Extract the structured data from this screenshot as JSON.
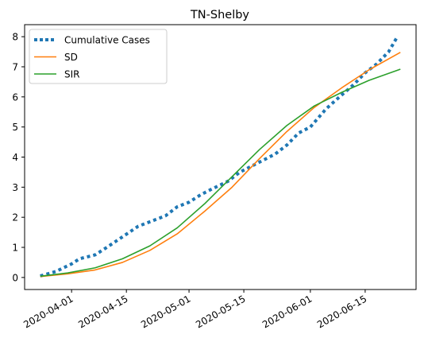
{
  "chart_data": {
    "type": "line",
    "title": "TN-Shelby",
    "xlabel": "",
    "ylabel": "",
    "x_type": "date",
    "xlim": [
      "2020-03-20",
      "2020-06-28"
    ],
    "ylim": [
      -0.4,
      8.4
    ],
    "yticks": [
      0,
      1,
      2,
      3,
      4,
      5,
      6,
      7,
      8
    ],
    "xticks": [
      "2020-04-01",
      "2020-04-15",
      "2020-05-01",
      "2020-05-15",
      "2020-06-01",
      "2020-06-15"
    ],
    "legend_position": "top-left",
    "grid": false,
    "series": [
      {
        "name": "Cumulative Cases",
        "color": "#1f77b4",
        "style": "dotted",
        "points": [
          [
            "2020-03-24",
            0.05
          ],
          [
            "2020-03-28",
            0.2
          ],
          [
            "2020-04-01",
            0.45
          ],
          [
            "2020-04-03",
            0.62
          ],
          [
            "2020-04-07",
            0.75
          ],
          [
            "2020-04-10",
            1.0
          ],
          [
            "2020-04-14",
            1.35
          ],
          [
            "2020-04-18",
            1.7
          ],
          [
            "2020-04-22",
            1.9
          ],
          [
            "2020-04-25",
            2.05
          ],
          [
            "2020-04-28",
            2.35
          ],
          [
            "2020-05-01",
            2.5
          ],
          [
            "2020-05-04",
            2.75
          ],
          [
            "2020-05-07",
            2.95
          ],
          [
            "2020-05-11",
            3.2
          ],
          [
            "2020-05-14",
            3.5
          ],
          [
            "2020-05-17",
            3.7
          ],
          [
            "2020-05-20",
            3.9
          ],
          [
            "2020-05-23",
            4.1
          ],
          [
            "2020-05-26",
            4.4
          ],
          [
            "2020-05-29",
            4.8
          ],
          [
            "2020-06-01",
            5.0
          ],
          [
            "2020-06-05",
            5.6
          ],
          [
            "2020-06-08",
            5.95
          ],
          [
            "2020-06-12",
            6.4
          ],
          [
            "2020-06-15",
            6.8
          ],
          [
            "2020-06-18",
            7.1
          ],
          [
            "2020-06-21",
            7.5
          ],
          [
            "2020-06-23",
            7.95
          ]
        ]
      },
      {
        "name": "SD",
        "color": "#ff7f0e",
        "style": "solid",
        "points": [
          [
            "2020-03-24",
            0.03
          ],
          [
            "2020-03-31",
            0.12
          ],
          [
            "2020-04-07",
            0.25
          ],
          [
            "2020-04-14",
            0.5
          ],
          [
            "2020-04-21",
            0.9
          ],
          [
            "2020-04-28",
            1.45
          ],
          [
            "2020-05-05",
            2.2
          ],
          [
            "2020-05-12",
            3.0
          ],
          [
            "2020-05-19",
            3.95
          ],
          [
            "2020-05-26",
            4.85
          ],
          [
            "2020-06-02",
            5.65
          ],
          [
            "2020-06-09",
            6.3
          ],
          [
            "2020-06-16",
            6.9
          ],
          [
            "2020-06-24",
            7.48
          ]
        ]
      },
      {
        "name": "SIR",
        "color": "#2ca02c",
        "style": "solid",
        "points": [
          [
            "2020-03-24",
            0.04
          ],
          [
            "2020-03-31",
            0.15
          ],
          [
            "2020-04-07",
            0.32
          ],
          [
            "2020-04-14",
            0.62
          ],
          [
            "2020-04-21",
            1.05
          ],
          [
            "2020-04-28",
            1.65
          ],
          [
            "2020-05-05",
            2.45
          ],
          [
            "2020-05-12",
            3.35
          ],
          [
            "2020-05-19",
            4.25
          ],
          [
            "2020-05-26",
            5.05
          ],
          [
            "2020-06-02",
            5.7
          ],
          [
            "2020-06-09",
            6.15
          ],
          [
            "2020-06-16",
            6.55
          ],
          [
            "2020-06-24",
            6.92
          ]
        ]
      }
    ]
  }
}
